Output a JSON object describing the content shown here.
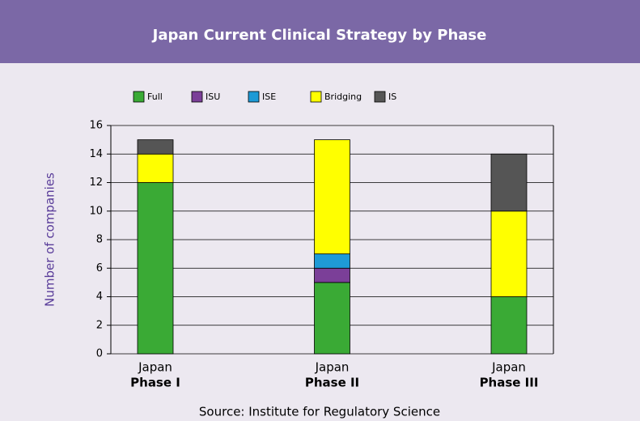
{
  "chart_data": {
    "type": "stacked_bar",
    "title": "Japan Current Clinical Strategy by Phase",
    "y_label": "Number of companies",
    "source": "Source: Institute for Regulatory Science",
    "categories": [
      "Japan",
      "Japan",
      "Japan"
    ],
    "phases": [
      "Phase I",
      "Phase II",
      "Phase III"
    ],
    "series": [
      {
        "name": "Full",
        "color": "#3aaa35",
        "values": [
          12,
          5,
          4
        ]
      },
      {
        "name": "ISU",
        "color": "#7b3f98",
        "values": [
          0,
          1,
          0
        ]
      },
      {
        "name": "ISE",
        "color": "#1e9ad6",
        "values": [
          0,
          1,
          0
        ]
      },
      {
        "name": "Bridging",
        "color": "#ffff00",
        "values": [
          2,
          8,
          6
        ]
      },
      {
        "name": "IS",
        "color": "#555555",
        "values": [
          1,
          0,
          4
        ]
      }
    ],
    "ylim": [
      0,
      16
    ],
    "yticks": [
      0,
      2,
      4,
      6,
      8,
      10,
      12,
      14,
      16
    ],
    "grid": true
  }
}
